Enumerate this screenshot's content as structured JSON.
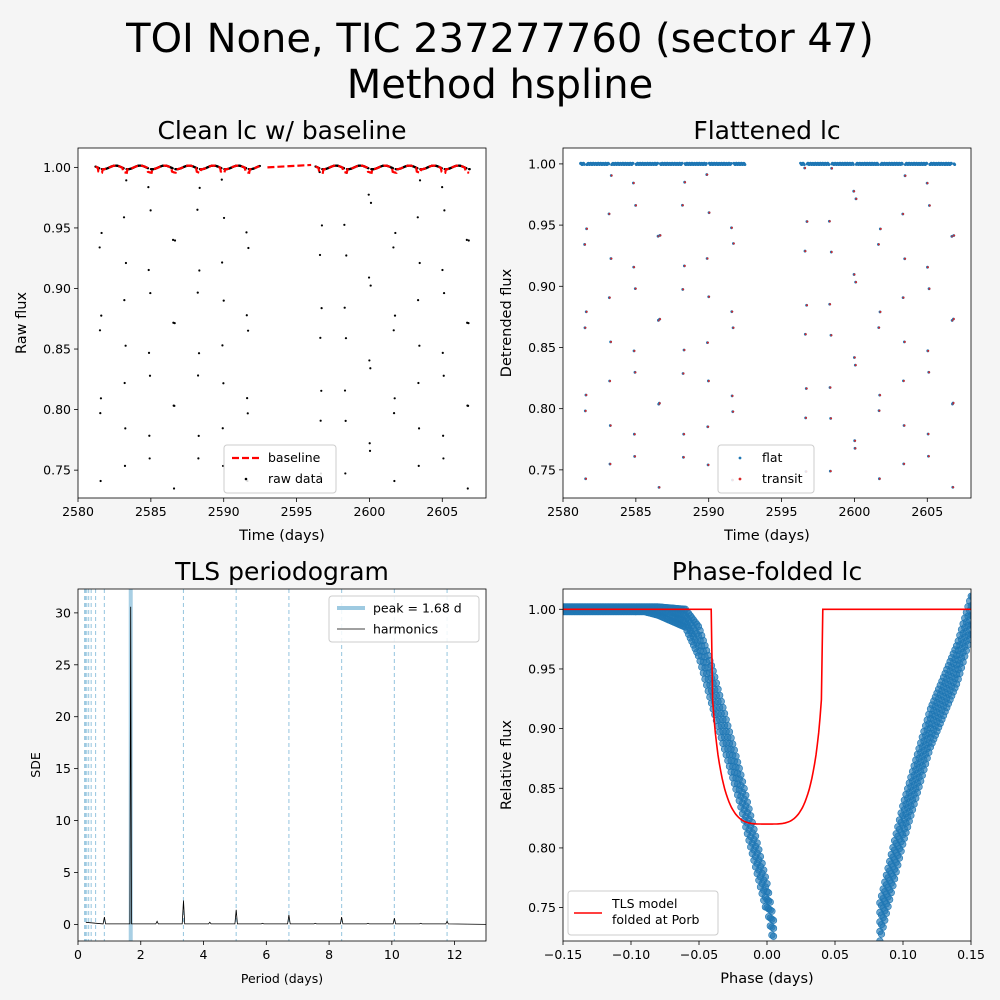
{
  "figure": {
    "title_line1": "TOI None, TIC 237277760 (sector 47)",
    "title_line2": "Method hspline"
  },
  "chart_data": [
    {
      "type": "scatter",
      "title": "Clean lc w/ baseline",
      "xlabel": "Time (days)",
      "ylabel": "Raw flux",
      "xlim": [
        2580.0,
        2608.0
      ],
      "ylim": [
        0.727,
        1.016
      ],
      "xticks": [
        2580,
        2585,
        2590,
        2595,
        2600,
        2605
      ],
      "yticks": [
        0.75,
        0.8,
        0.85,
        0.9,
        0.95,
        1.0
      ],
      "legend": "lower-center",
      "series": [
        {
          "name": "baseline",
          "kind": "dashed-line",
          "color": "#ff0000",
          "x": [
            2593.0,
            2596.0
          ],
          "y": [
            1.0,
            1.002
          ]
        },
        {
          "name": "raw data",
          "kind": "points",
          "color": "#000000",
          "transit_times": [
            2581.55,
            2583.23,
            2584.91,
            2586.59,
            2588.27,
            2589.95,
            2591.63,
            2596.67,
            2598.35,
            2600.03,
            2601.71,
            2603.39,
            2605.07,
            2606.75
          ],
          "segments": [
            [
              2581.2,
              2592.5
            ],
            [
              2596.3,
              2606.9
            ]
          ],
          "transit_depth": 0.264
        }
      ]
    },
    {
      "type": "scatter",
      "title": "Flattened lc",
      "xlabel": "Time (days)",
      "ylabel": "Detrended flux",
      "xlim": [
        2580.0,
        2608.0
      ],
      "ylim": [
        0.727,
        1.013
      ],
      "xticks": [
        2580,
        2585,
        2590,
        2595,
        2600,
        2605
      ],
      "yticks": [
        0.75,
        0.8,
        0.85,
        0.9,
        0.95,
        1.0
      ],
      "legend": "lower-center",
      "series": [
        {
          "name": "flat",
          "color": "#1f77b4"
        },
        {
          "name": "transit",
          "color": "#d62728"
        }
      ]
    },
    {
      "type": "line",
      "title": "TLS periodogram",
      "xlabel": "Period (days)",
      "ylabel": "SDE",
      "xlim": [
        0,
        13
      ],
      "ylim": [
        -1.6,
        32.3
      ],
      "xticks": [
        0,
        2,
        4,
        6,
        8,
        10,
        12
      ],
      "yticks": [
        0,
        5,
        10,
        15,
        20,
        25,
        30
      ],
      "legend": "upper-right",
      "peak_period": 1.68,
      "peak_sde": 30.6,
      "harmonic_lines": [
        0.21,
        0.24,
        0.28,
        0.34,
        0.42,
        0.56,
        0.84,
        3.36,
        5.04,
        6.72,
        8.4,
        10.08,
        11.76
      ],
      "spikes": [
        {
          "x": 0.84,
          "y": 0.7
        },
        {
          "x": 1.68,
          "y": 30.6
        },
        {
          "x": 2.52,
          "y": 0.3
        },
        {
          "x": 3.36,
          "y": 2.3
        },
        {
          "x": 4.2,
          "y": 0.2
        },
        {
          "x": 5.04,
          "y": 1.4
        },
        {
          "x": 5.88,
          "y": 0.1
        },
        {
          "x": 6.72,
          "y": 0.9
        },
        {
          "x": 7.56,
          "y": 0.1
        },
        {
          "x": 8.4,
          "y": 0.7
        },
        {
          "x": 9.24,
          "y": 0.1
        },
        {
          "x": 10.08,
          "y": 0.6
        },
        {
          "x": 10.92,
          "y": 0.1
        },
        {
          "x": 11.76,
          "y": 0.3
        }
      ],
      "series": [
        {
          "name": "peak = 1.68 d",
          "color": "#9ecae1"
        },
        {
          "name": "harmonics",
          "color": "#000000"
        }
      ]
    },
    {
      "type": "scatter",
      "title": "Phase-folded lc",
      "xlabel": "Phase (days)",
      "ylabel": "Relative flux",
      "xlim": [
        -0.15,
        0.15
      ],
      "ylim": [
        0.722,
        1.017
      ],
      "xticks": [
        -0.15,
        -0.1,
        -0.05,
        0.0,
        0.05,
        0.1,
        0.15
      ],
      "xtick_labels": [
        "−0.15",
        "−0.10",
        "−0.05",
        "0.00",
        "0.05",
        "0.10",
        "0.15"
      ],
      "yticks": [
        0.75,
        0.8,
        0.85,
        0.9,
        0.95,
        1.0
      ],
      "legend": "lower-left",
      "model": {
        "color": "#ff0000",
        "ingress": -0.042,
        "egress": 0.042,
        "min_flux": 0.82
      },
      "points": {
        "color": "#1f77b4",
        "upper_band": [
          [
            -0.15,
            1.002
          ],
          [
            -0.09,
            1.002
          ],
          [
            -0.08,
            1.002
          ],
          [
            -0.06,
            1.0
          ],
          [
            -0.05,
            0.985
          ],
          [
            -0.04,
            0.95
          ],
          [
            -0.02,
            0.865
          ],
          [
            0.0,
            0.77
          ],
          [
            0.005,
            0.738
          ]
        ],
        "lower_band": [
          [
            -0.15,
            0.998
          ],
          [
            -0.09,
            0.998
          ],
          [
            -0.08,
            0.995
          ],
          [
            -0.06,
            0.985
          ],
          [
            -0.05,
            0.96
          ],
          [
            -0.04,
            0.918
          ],
          [
            -0.02,
            0.838
          ],
          [
            0.0,
            0.745
          ]
        ],
        "right_branch": [
          [
            0.083,
            0.738
          ],
          [
            0.1,
            0.82
          ],
          [
            0.12,
            0.9
          ],
          [
            0.14,
            0.955
          ],
          [
            0.15,
            0.995
          ]
        ]
      },
      "series": [
        {
          "name": "TLS model\nfolded at Porb",
          "color": "#ff0000"
        }
      ],
      "legend_lines": [
        "TLS model",
        "folded at Porb"
      ]
    }
  ]
}
